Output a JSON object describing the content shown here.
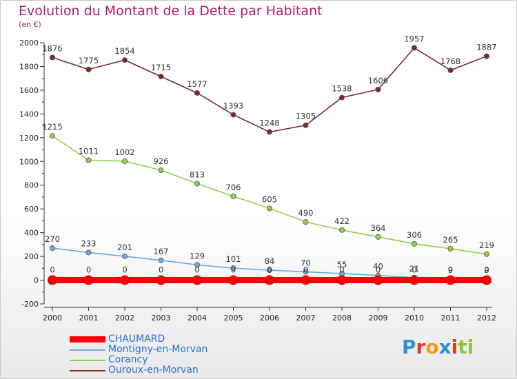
{
  "header": {
    "title": "Evolution du Montant de la Dette par Habitant",
    "subtitle": "(en €)"
  },
  "brand": {
    "logo_letters": [
      "P",
      "r",
      "o",
      "x",
      "i",
      "t",
      "i"
    ],
    "logo_colors": [
      "#2f8fd8",
      "#e3391f",
      "#f59a1b",
      "#2f8fd8",
      "#e3391f",
      "#8cc63e",
      "#8cc63e"
    ]
  },
  "chart_data": {
    "type": "line",
    "title": "Evolution du Montant de la Dette par Habitant",
    "subtitle": "(en €)",
    "xlabel": "",
    "ylabel": "",
    "x": [
      "2000",
      "2001",
      "2002",
      "2003",
      "2004",
      "2005",
      "2006",
      "2007",
      "2008",
      "2009",
      "2010",
      "2011",
      "2012"
    ],
    "ylim": [
      -200,
      2000
    ],
    "yticks": [
      "-200",
      "0",
      "200",
      "400",
      "600",
      "800",
      "1000",
      "1200",
      "1400",
      "1600",
      "1800",
      "2000"
    ],
    "grid": false,
    "legend_position": "bottom-left",
    "series": [
      {
        "name": "CHAUMARD",
        "color": "#ff0000",
        "values": [
          0,
          0,
          0,
          0,
          0,
          0,
          0,
          0,
          0,
          0,
          0,
          0,
          0
        ],
        "labels": [
          "0",
          "0",
          "0",
          "0",
          "0",
          "0",
          "0",
          "0",
          "0",
          "0",
          "0",
          "0",
          "0"
        ]
      },
      {
        "name": "Montigny-en-Morvan",
        "color": "#6fa8dc",
        "values": [
          270,
          233,
          201,
          167,
          129,
          101,
          84,
          70,
          55,
          40,
          21,
          9,
          9
        ],
        "labels": [
          "270",
          "233",
          "201",
          "167",
          "129",
          "101",
          "84",
          "70",
          "55",
          "40",
          "21",
          "9",
          "9"
        ]
      },
      {
        "name": "Corancy",
        "color": "#8fd14f",
        "values": [
          1215,
          1011,
          1002,
          926,
          813,
          706,
          605,
          490,
          422,
          364,
          306,
          265,
          219
        ],
        "labels": [
          "1215",
          "1011",
          "1002",
          "926",
          "813",
          "706",
          "605",
          "490",
          "422",
          "364",
          "306",
          "265",
          "219"
        ]
      },
      {
        "name": "Ouroux-en-Morvan",
        "color": "#7a2a2a",
        "values": [
          1876,
          1775,
          1854,
          1715,
          1577,
          1393,
          1248,
          1305,
          1538,
          1606,
          1957,
          1768,
          1887
        ],
        "labels": [
          "1876",
          "1775",
          "1854",
          "1715",
          "1577",
          "1393",
          "1248",
          "1305",
          "1538",
          "1606",
          "1957",
          "1768",
          "1887"
        ]
      }
    ]
  }
}
